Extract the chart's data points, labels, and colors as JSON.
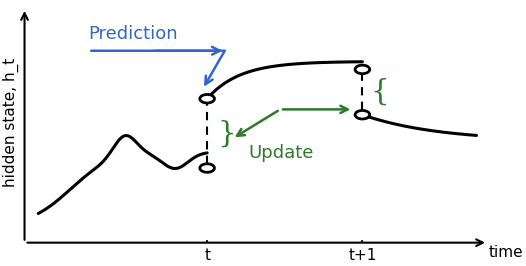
{
  "bg_color": "#ffffff",
  "curve_color": "#000000",
  "prediction_color": "#3366cc",
  "update_color": "#2d7a2d",
  "prediction_label": "Prediction",
  "update_label": "Update",
  "ylabel": "hidden state, h_t",
  "xlabel": "time",
  "tick_t": 0.4,
  "tick_t1": 0.74,
  "xlim": [
    0.0,
    1.02
  ],
  "ylim": [
    0.0,
    0.9
  ],
  "obs_bt": [
    0.4,
    0.28
  ],
  "obs_at": [
    0.4,
    0.54
  ],
  "obs_bt1": [
    0.74,
    0.48
  ],
  "obs_at1": [
    0.74,
    0.65
  ],
  "font_size_label": 13,
  "font_size_axis": 11,
  "font_size_tick": 11
}
